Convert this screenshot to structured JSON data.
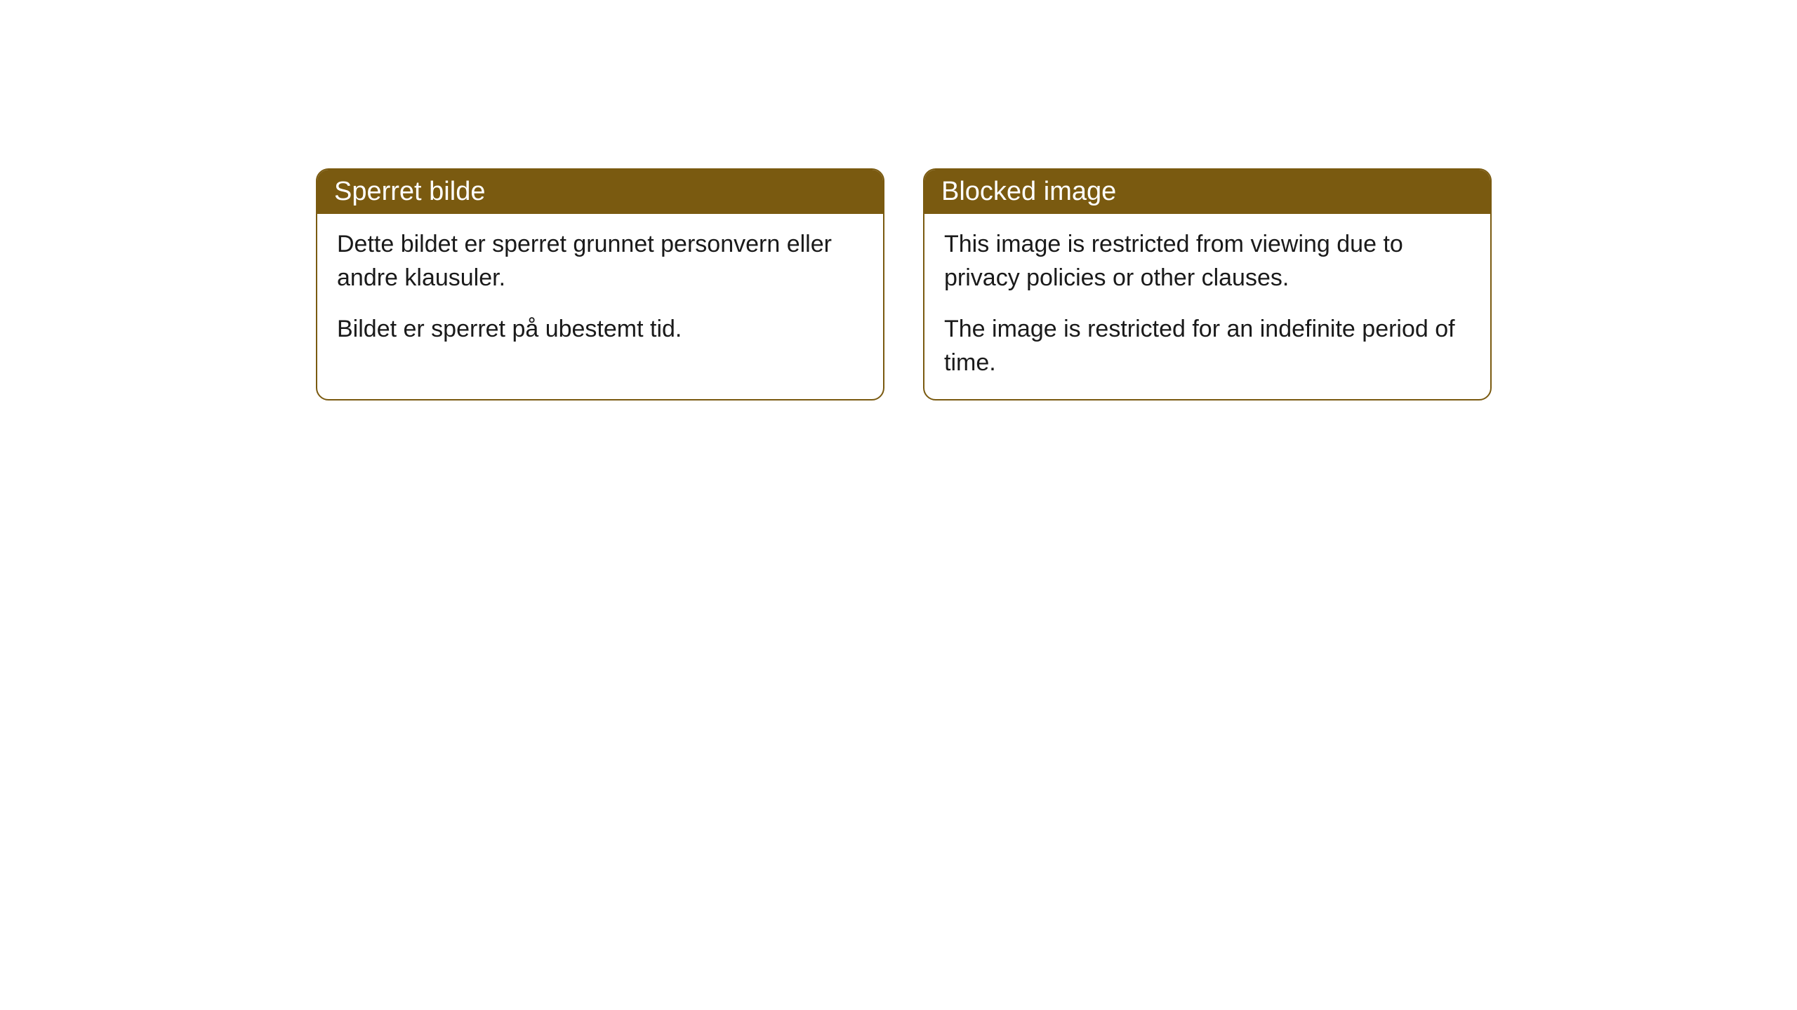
{
  "cards": [
    {
      "title": "Sperret bilde",
      "paragraph1": "Dette bildet er sperret grunnet personvern eller andre klausuler.",
      "paragraph2": "Bildet er sperret på ubestemt tid."
    },
    {
      "title": "Blocked image",
      "paragraph1": "This image is restricted from viewing due to privacy policies or other clauses.",
      "paragraph2": "The image is restricted for an indefinite period of time."
    }
  ],
  "styling": {
    "header_background": "#7a5a10",
    "header_text_color": "#ffffff",
    "card_border_color": "#7a5a10",
    "card_background": "#ffffff",
    "body_text_color": "#1a1a1a",
    "page_background": "#ffffff",
    "border_radius": 18,
    "header_fontsize": 38,
    "body_fontsize": 34
  }
}
